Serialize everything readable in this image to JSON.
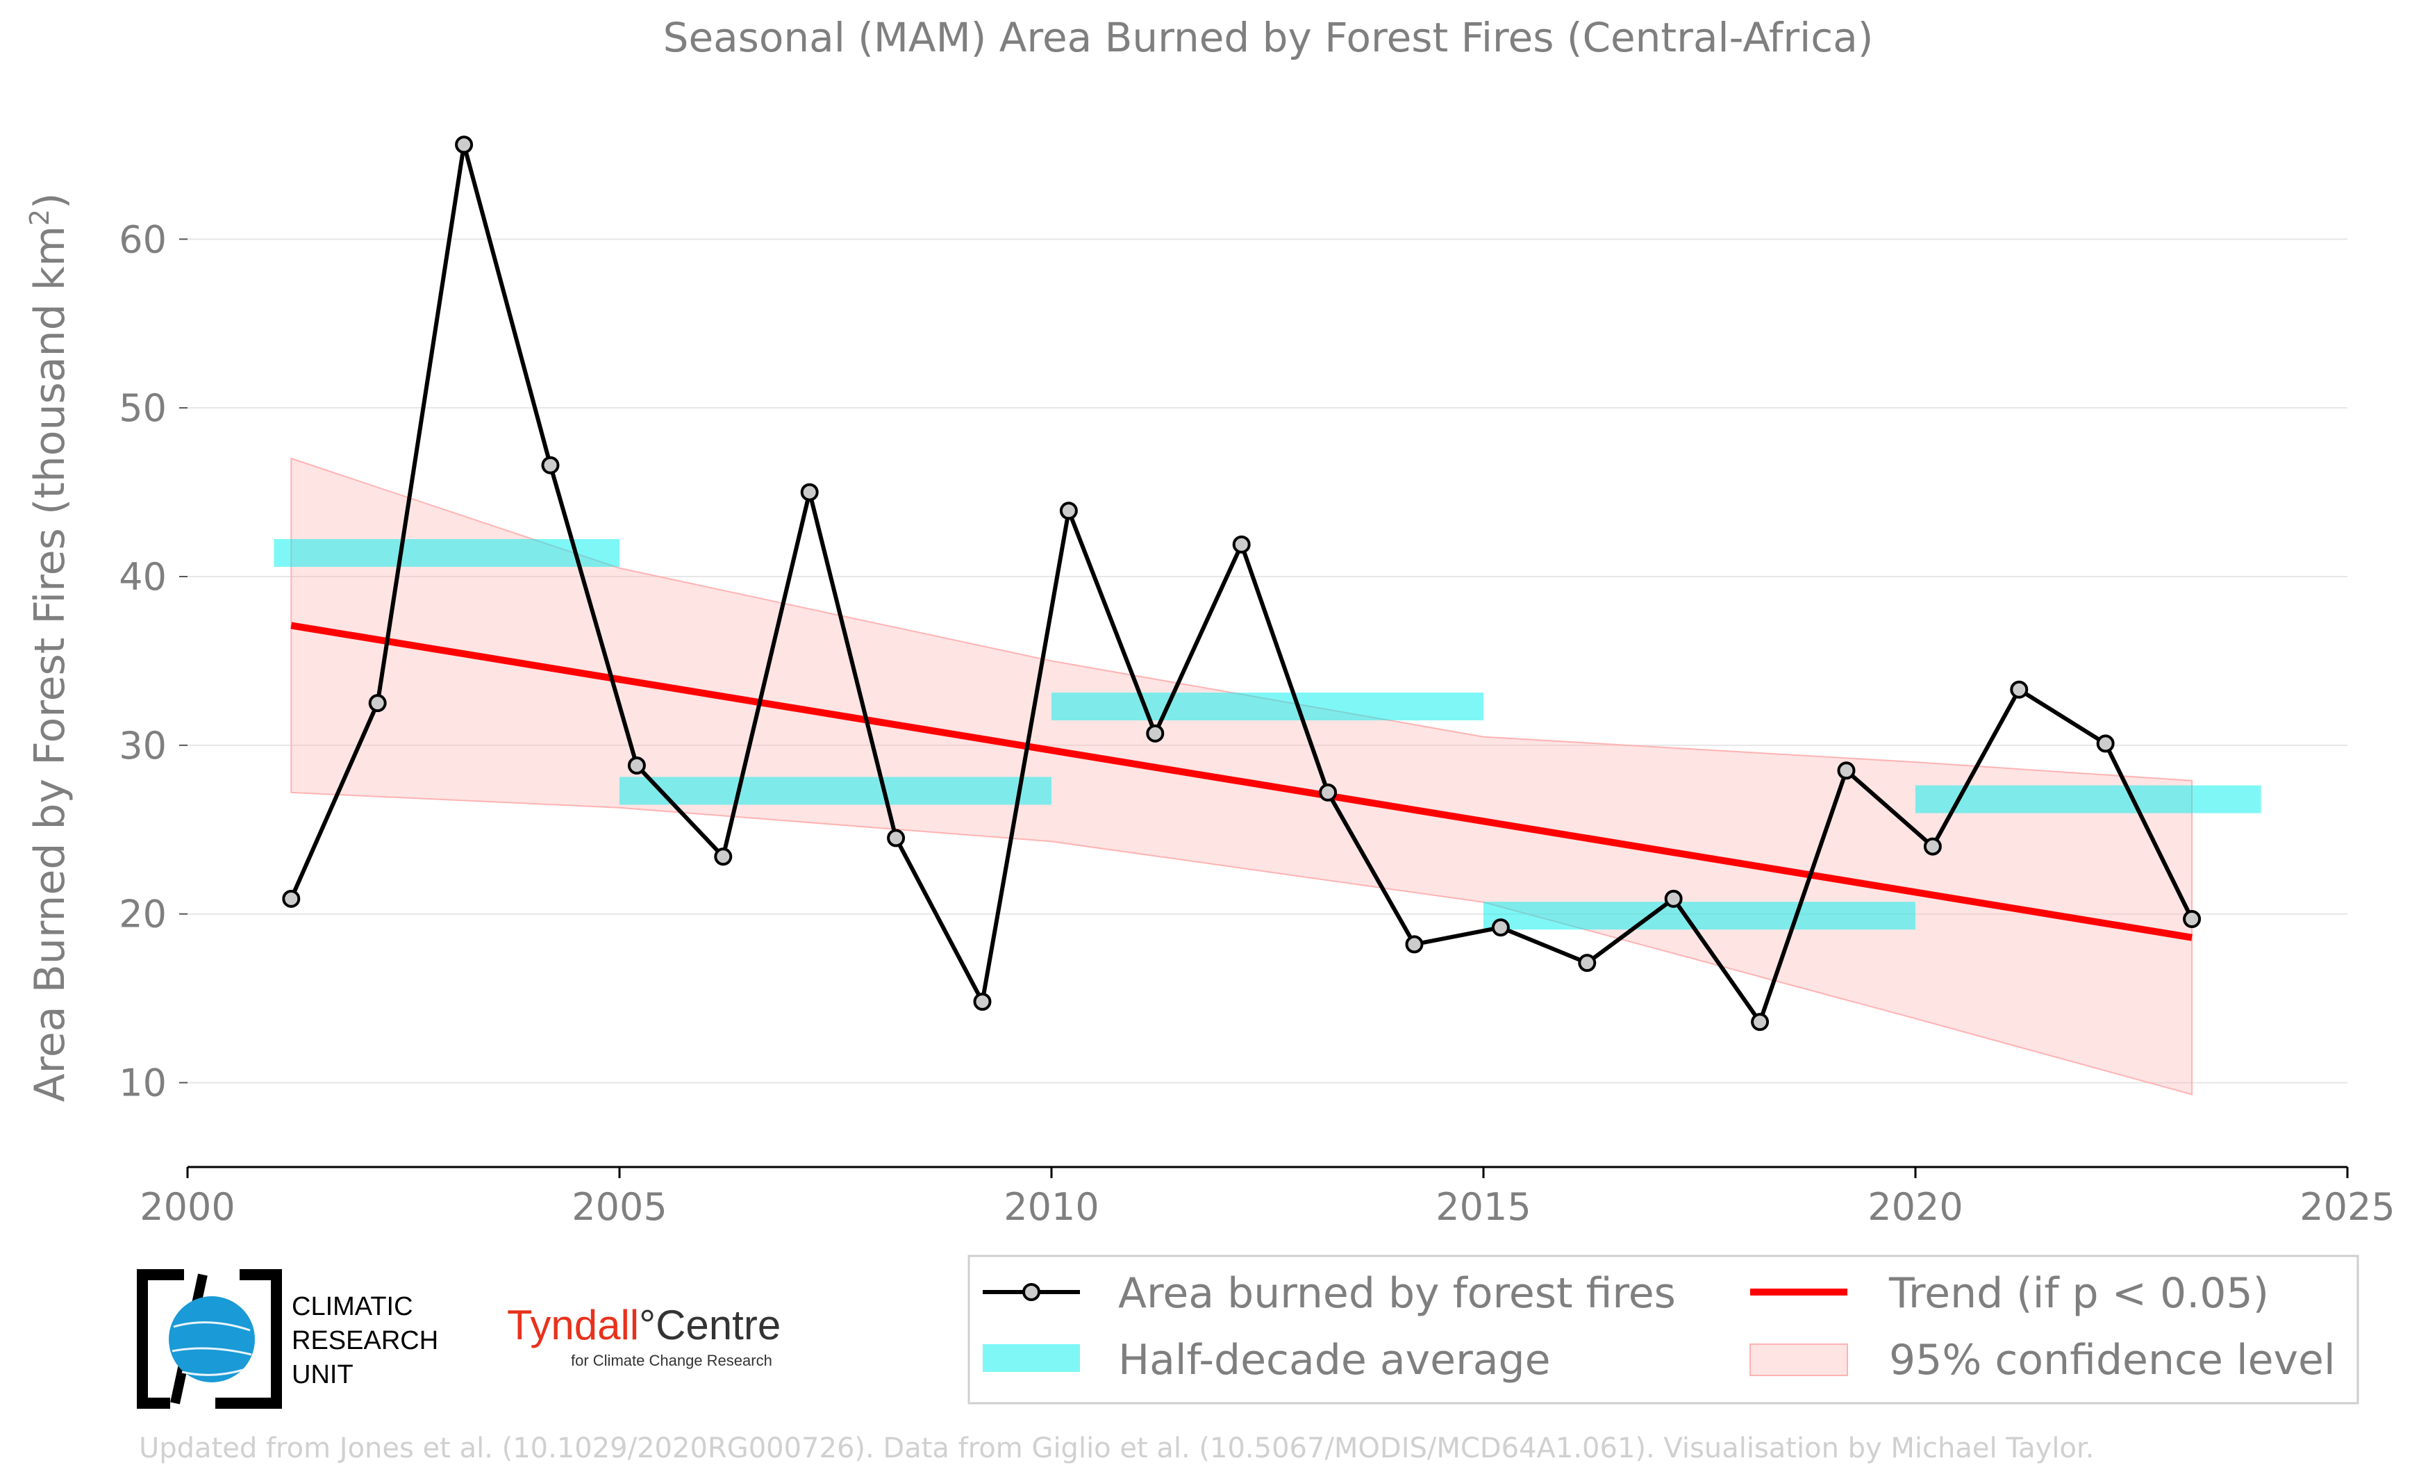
{
  "chart_data": {
    "type": "line",
    "title": "Seasonal (MAM) Area Burned by Forest Fires (Central-Africa)",
    "ylabel_main": "Area Burned by Forest Fires (thousand km",
    "ylabel_sup": "2",
    "ylabel_end": ")",
    "xlim": [
      2000,
      2025
    ],
    "ylim": [
      5,
      68
    ],
    "xticks": [
      2000,
      2005,
      2010,
      2015,
      2020,
      2025
    ],
    "yticks": [
      10,
      20,
      30,
      40,
      50,
      60
    ],
    "grid": "horizontal",
    "x": [
      2001.2,
      2002.2,
      2003.2,
      2004.2,
      2005.2,
      2006.2,
      2007.2,
      2008.2,
      2009.2,
      2010.2,
      2011.2,
      2012.2,
      2013.2,
      2014.2,
      2015.2,
      2016.2,
      2017.2,
      2018.2,
      2019.2,
      2020.2,
      2021.2,
      2022.2,
      2023.2
    ],
    "series": [
      {
        "name": "Area burned by forest fires",
        "values": [
          20.9,
          32.5,
          65.6,
          46.6,
          28.8,
          23.4,
          45.0,
          24.5,
          14.8,
          43.9,
          30.7,
          41.9,
          27.2,
          18.2,
          19.2,
          17.1,
          20.9,
          13.6,
          28.5,
          24.0,
          33.3,
          30.1,
          19.7
        ]
      }
    ],
    "half_decade_average": {
      "name": "Half-decade average",
      "segments": [
        {
          "x0": 2001,
          "x1": 2005,
          "y": 41.4
        },
        {
          "x0": 2005,
          "x1": 2010,
          "y": 27.3
        },
        {
          "x0": 2010,
          "x1": 2015,
          "y": 32.3
        },
        {
          "x0": 2015,
          "x1": 2020,
          "y": 19.9
        },
        {
          "x0": 2020,
          "x1": 2024,
          "y": 26.8
        }
      ]
    },
    "trend": {
      "name": "Trend (if p < 0.05)",
      "x": [
        2001.2,
        2023.2
      ],
      "y": [
        37.1,
        18.6
      ]
    },
    "confidence": {
      "name": "95% confidence level",
      "x": [
        2001.2,
        2005,
        2010,
        2015,
        2020,
        2023.2
      ],
      "upper": [
        47.0,
        40.5,
        35.0,
        30.5,
        29.0,
        27.9
      ],
      "lower": [
        27.2,
        26.3,
        24.3,
        20.7,
        13.8,
        9.3
      ]
    },
    "legend_placement": "bottom-right",
    "colors": {
      "series": "#000000",
      "marker_fill": "#cccccc",
      "half_decade": "#00f0f0",
      "trend": "#ff0000",
      "confidence": "#ffb3b3",
      "grid": "#e6e6e6",
      "text": "#7f7f7f"
    }
  },
  "legend": {
    "series": "Area burned by forest fires",
    "half_decade": "Half-decade average",
    "trend": "Trend (if p < 0.05)",
    "confidence": "95% confidence level"
  },
  "logos": {
    "cru_line1": "CLIMATIC",
    "cru_line2": "RESEARCH",
    "cru_line3": "UNIT",
    "tyndall_name": "Tyndall",
    "tyndall_centre": "°Centre",
    "tyndall_sub": "for Climate Change Research"
  },
  "footer": "Updated from Jones et al. (10.1029/2020RG000726). Data from Giglio et al. (10.5067/MODIS/MCD64A1.061). Visualisation by Michael Taylor."
}
